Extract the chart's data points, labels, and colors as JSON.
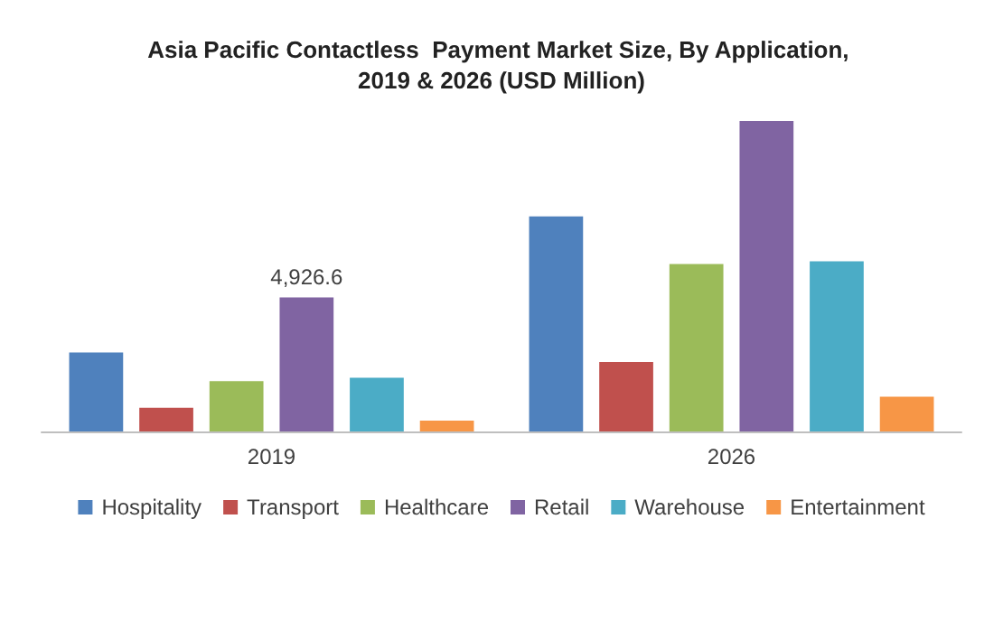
{
  "chart_data": {
    "type": "bar",
    "title": "Asia Pacific Contactless  Payment Market Size, By Application, 2019 & 2026 (USD Million)",
    "categories": [
      "2019",
      "2026"
    ],
    "series": [
      {
        "name": "Hospitality",
        "color": "#4f81bd",
        "values": [
          2900,
          7900
        ]
      },
      {
        "name": "Transport",
        "color": "#c0504d",
        "values": [
          870,
          2550
        ]
      },
      {
        "name": "Healthcare",
        "color": "#9bbb59",
        "values": [
          1850,
          6150
        ]
      },
      {
        "name": "Retail",
        "color": "#8064a2",
        "values": [
          4926.6,
          11400
        ],
        "value_labels": [
          "4,926.6",
          null
        ]
      },
      {
        "name": "Warehouse",
        "color": "#4bacc6",
        "values": [
          1970,
          6250
        ]
      },
      {
        "name": "Entertainment",
        "color": "#f79646",
        "values": [
          400,
          1280
        ]
      }
    ],
    "legend": "bottom"
  }
}
